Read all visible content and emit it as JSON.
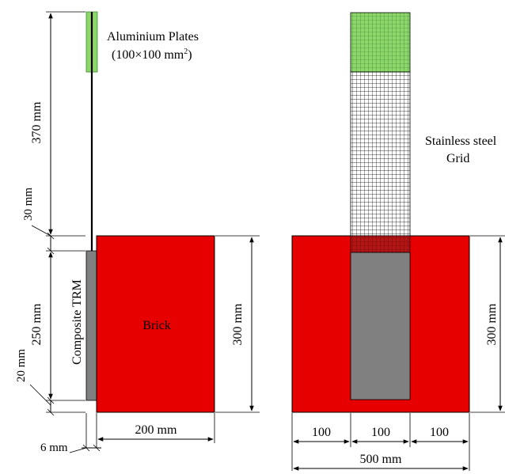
{
  "labels": {
    "aluminium_plates": "Aluminium Plates",
    "aluminium_plates_size_prefix": "(100×100 mm",
    "aluminium_plates_size_sup": "2",
    "aluminium_plates_size_suffix": ")",
    "stainless_line1": "Stainless steel",
    "stainless_line2": "Grid",
    "brick": "Brick",
    "composite_trm": "Composite TRM"
  },
  "side_view_dims": {
    "d370": "370 mm",
    "d30": "30 mm",
    "d250": "250 mm",
    "d20": "20 mm",
    "d6": "6 mm",
    "d200": "200 mm",
    "d300": "300 mm"
  },
  "front_view_dims": {
    "seg1": "100",
    "seg2": "100",
    "seg3": "100",
    "total": "500 mm",
    "height": "300 mm"
  },
  "colors": {
    "brick": "#e60000",
    "plate": "#8dd66a",
    "trm_core": "#808080",
    "overlap": "#9a1a1a",
    "grid_line": "#000000"
  }
}
